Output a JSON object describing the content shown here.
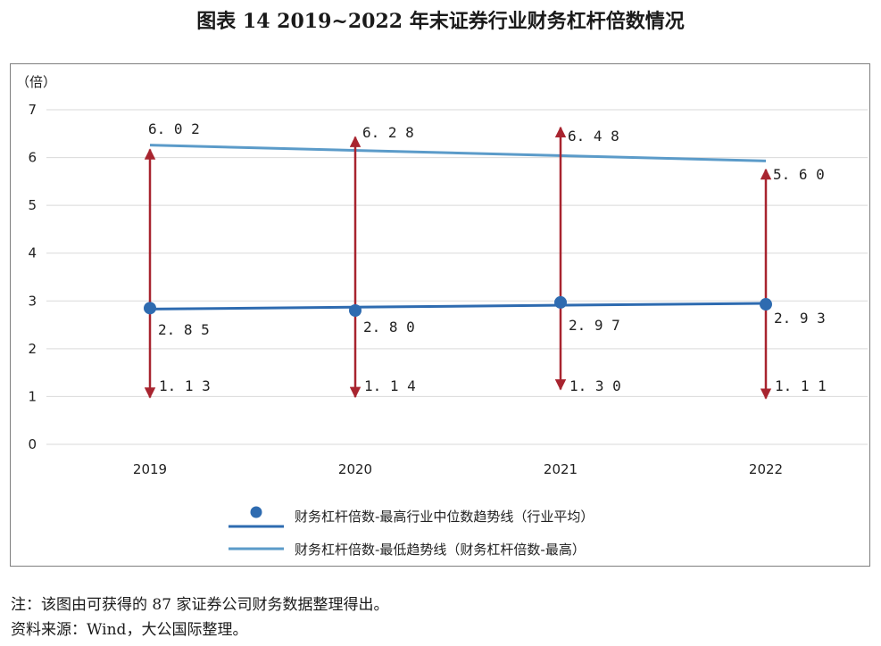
{
  "title": "图表 14  2019~2022 年末证券行业财务杠杆倍数情况",
  "notes": {
    "note": "注：该图由可获得的 87 家证券公司财务数据整理得出。",
    "source": "资料来源：Wind，大公国际整理。"
  },
  "chart_data": {
    "type": "line",
    "y_unit_label": "（倍）",
    "categories": [
      "2019",
      "2020",
      "2021",
      "2022"
    ],
    "ylim": [
      0,
      7
    ],
    "yticks": [
      "0",
      "1",
      "2",
      "3",
      "4",
      "5",
      "6",
      "7"
    ],
    "grid": true,
    "legend_position": "bottom",
    "colors": {
      "median_line": "#2e6bb0",
      "max_trend_line": "#5b9bc9",
      "arrow": "#a8242f",
      "grid": "#d9d9d9"
    },
    "median": {
      "values": [
        2.85,
        2.8,
        2.97,
        2.93
      ],
      "labels": [
        "2.85",
        "2.80",
        "2.97",
        "2.93"
      ]
    },
    "max": {
      "values": [
        6.02,
        6.28,
        6.48,
        5.6
      ],
      "labels": [
        "6.02",
        "6.28",
        "6.48",
        "5.60"
      ]
    },
    "min": {
      "values": [
        1.13,
        1.14,
        1.3,
        1.11
      ],
      "labels": [
        "1.13",
        "1.14",
        "1.30",
        "1.11"
      ]
    },
    "median_trend": [
      2.83,
      2.95
    ],
    "max_trend": [
      6.26,
      5.93
    ],
    "legend": [
      {
        "name": "财务杠杆倍数-最高行业中位数趋势线（行业平均）",
        "style": "line-dot"
      },
      {
        "name": "财务杠杆倍数-最低趋势线（财务杠杆倍数-最高）",
        "style": "line"
      }
    ]
  }
}
